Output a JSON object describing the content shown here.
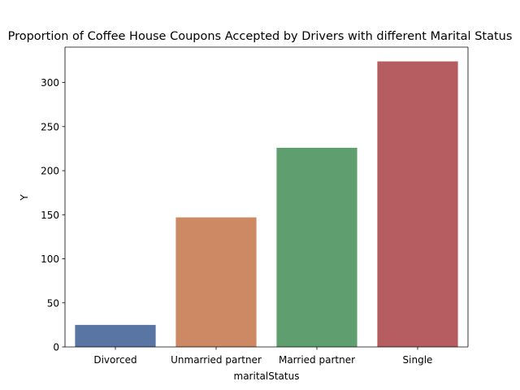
{
  "chart_data": {
    "type": "bar",
    "title": "Proportion of Coffee House Coupons Accepted by Drivers with different Marital Status",
    "xlabel": "maritalStatus",
    "ylabel": "Y",
    "categories": [
      "Divorced",
      "Unmarried partner",
      "Married partner",
      "Single"
    ],
    "values": [
      25,
      147,
      226,
      324
    ],
    "colors": [
      "#5875a4",
      "#cc8963",
      "#5f9e6e",
      "#b55d60"
    ],
    "ylim": [
      0,
      340.2
    ],
    "yticks": [
      0,
      50,
      100,
      150,
      200,
      250,
      300
    ],
    "grid": false,
    "legend": "none"
  }
}
